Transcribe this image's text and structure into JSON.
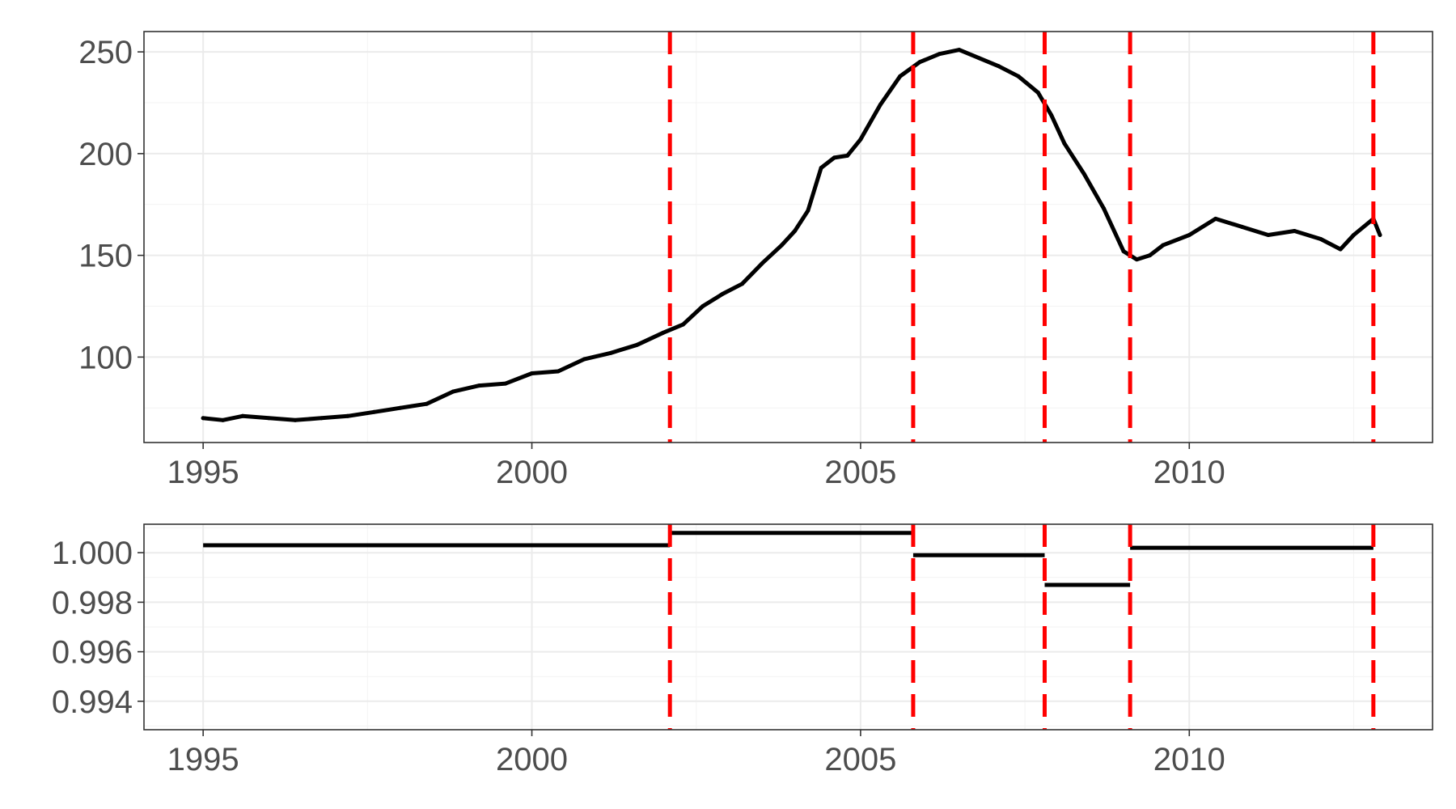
{
  "colors": {
    "series": "#000000",
    "breaks": "#ff0000",
    "text": "#4d4d4d"
  },
  "chart_data": [
    {
      "type": "line",
      "title": "",
      "xlabel": "",
      "ylabel": "",
      "xlim": [
        1994.1,
        2013.7
      ],
      "ylim": [
        58,
        260
      ],
      "xticks": [
        1995,
        2000,
        2005,
        2010
      ],
      "yticks": [
        100,
        150,
        200,
        250
      ],
      "grid": true,
      "legend": "none",
      "break_lines": [
        2002.1,
        2005.8,
        2007.8,
        2009.1,
        2012.8
      ],
      "series": [
        {
          "x": [
            1995.0,
            1995.3,
            1995.6,
            1996.0,
            1996.4,
            1996.8,
            1997.2,
            1997.6,
            1998.0,
            1998.4,
            1998.8,
            1999.2,
            1999.6,
            2000.0,
            2000.4,
            2000.8,
            2001.2,
            2001.6,
            2002.0,
            2002.3,
            2002.6,
            2002.9,
            2003.2,
            2003.5,
            2003.8,
            2004.0,
            2004.2,
            2004.4,
            2004.6,
            2004.8,
            2005.0,
            2005.3,
            2005.6,
            2005.9,
            2006.2,
            2006.5,
            2006.8,
            2007.1,
            2007.4,
            2007.7,
            2007.9,
            2008.1,
            2008.4,
            2008.7,
            2009.0,
            2009.2,
            2009.4,
            2009.6,
            2010.0,
            2010.4,
            2010.8,
            2011.2,
            2011.6,
            2012.0,
            2012.3,
            2012.5,
            2012.8,
            2012.9
          ],
          "y": [
            70,
            69,
            71,
            70,
            69,
            70,
            71,
            73,
            75,
            77,
            83,
            86,
            87,
            92,
            93,
            99,
            102,
            106,
            112,
            116,
            125,
            131,
            136,
            146,
            155,
            162,
            172,
            193,
            198,
            199,
            207,
            224,
            238,
            245,
            249,
            251,
            247,
            243,
            238,
            230,
            219,
            205,
            190,
            173,
            152,
            148,
            150,
            155,
            160,
            168,
            164,
            160,
            162,
            158,
            153,
            160,
            168,
            160
          ]
        }
      ]
    },
    {
      "type": "line",
      "title": "",
      "xlabel": "",
      "ylabel": "",
      "xlim": [
        1994.1,
        2013.7
      ],
      "ylim": [
        0.99285,
        1.00115
      ],
      "xticks": [
        1995,
        2000,
        2005,
        2010
      ],
      "yticks": [
        0.994,
        0.996,
        0.998,
        1.0
      ],
      "ytick_labels": [
        "0.994",
        "0.996",
        "0.998",
        "1.000"
      ],
      "grid": true,
      "legend": "none",
      "break_lines": [
        2002.1,
        2005.8,
        2007.8,
        2009.1,
        2012.8
      ],
      "segments": [
        {
          "x_start": 1995.0,
          "x_end": 2002.1,
          "value": 1.0003
        },
        {
          "x_start": 2002.1,
          "x_end": 2005.8,
          "value": 1.0008
        },
        {
          "x_start": 2005.8,
          "x_end": 2007.8,
          "value": 0.9999
        },
        {
          "x_start": 2007.8,
          "x_end": 2009.1,
          "value": 0.9987
        },
        {
          "x_start": 2009.1,
          "x_end": 2012.8,
          "value": 1.0002
        }
      ]
    }
  ]
}
